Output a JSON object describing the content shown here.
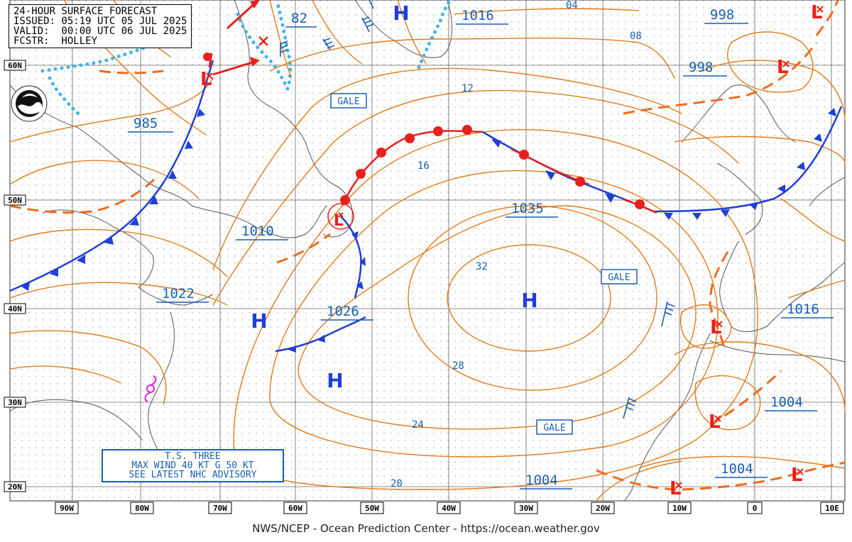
{
  "header": {
    "line1": "24-HOUR SURFACE FORECAST",
    "line2": "ISSUED: 05:19 UTC 05 JUL 2025",
    "line3": "VALID:  00:00 UTC 06 JUL 2025",
    "line4": "FCSTR:  HOLLEY"
  },
  "footer": "NWS/NCEP - Ocean Prediction Center - https://ocean.weather.gov",
  "advisory": {
    "line1": "T.S. THREE",
    "line2": "MAX WIND 40 KT G 50 KT",
    "line3": "SEE LATEST NHC ADVISORY"
  },
  "longitudes": [
    "90W",
    "80W",
    "70W",
    "60W",
    "50W",
    "40W",
    "30W",
    "20W",
    "10W",
    "0",
    "10E"
  ],
  "latitudes": [
    "60N",
    "50N",
    "40N",
    "30N",
    "20N"
  ],
  "pressure_labels": [
    "985",
    "82",
    "1016",
    "998",
    "998",
    "1010",
    "1035",
    "1022",
    "1026",
    "1016",
    "1004",
    "1004",
    "1004"
  ],
  "isobar_labels": [
    "04",
    "08",
    "12",
    "16",
    "32",
    "28",
    "24",
    "20"
  ],
  "gale_labels": [
    "GALE",
    "GALE",
    "GALE"
  ],
  "high_symbol": "H",
  "low_symbol": "L",
  "colors": {
    "isobar": "#e07b1a",
    "front_blue": "#1f3fd6",
    "front_red": "#e8201c",
    "label": "#1a5fb4",
    "ice": "#3fb5e8",
    "coast": "#555555",
    "grid": "#666666",
    "tropical": "#e01fd8"
  }
}
